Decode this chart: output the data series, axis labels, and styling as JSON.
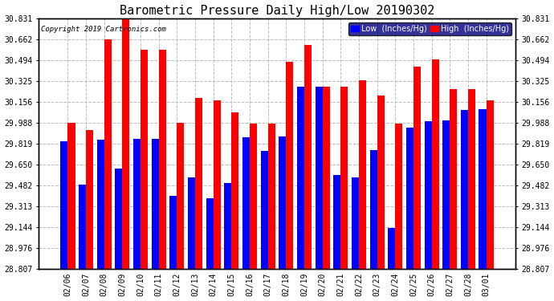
{
  "title": "Barometric Pressure Daily High/Low 20190302",
  "copyright": "Copyright 2019 Cartronics.com",
  "dates": [
    "02/06",
    "02/07",
    "02/08",
    "02/09",
    "02/10",
    "02/11",
    "02/12",
    "02/13",
    "02/14",
    "02/15",
    "02/16",
    "02/17",
    "02/18",
    "02/19",
    "02/20",
    "02/21",
    "02/22",
    "02/23",
    "02/24",
    "02/25",
    "02/26",
    "02/27",
    "02/28",
    "03/01"
  ],
  "low_values": [
    29.84,
    29.49,
    29.85,
    29.62,
    29.86,
    29.86,
    29.4,
    29.55,
    29.38,
    29.5,
    29.87,
    29.76,
    29.88,
    30.28,
    30.28,
    29.57,
    29.55,
    29.77,
    29.14,
    29.95,
    30.0,
    30.01,
    30.09,
    30.1
  ],
  "high_values": [
    29.99,
    29.93,
    30.66,
    30.83,
    30.58,
    30.58,
    29.99,
    30.19,
    30.17,
    30.07,
    29.98,
    29.98,
    30.48,
    30.62,
    30.28,
    30.28,
    30.33,
    30.21,
    29.98,
    30.44,
    30.5,
    30.26,
    30.26,
    30.17
  ],
  "ylim_min": 28.807,
  "ylim_max": 30.831,
  "yticks": [
    28.807,
    28.976,
    29.144,
    29.313,
    29.482,
    29.65,
    29.819,
    29.988,
    30.156,
    30.325,
    30.494,
    30.662,
    30.831
  ],
  "low_color": "#0000ff",
  "high_color": "#ff0000",
  "bg_color": "#ffffff",
  "grid_color": "#bbbbbb",
  "bar_width": 0.4,
  "title_fontsize": 11,
  "tick_fontsize": 7,
  "legend_low": "Low  (Inches/Hg)",
  "legend_high": "High  (Inches/Hg)",
  "legend_bg": "#000080"
}
